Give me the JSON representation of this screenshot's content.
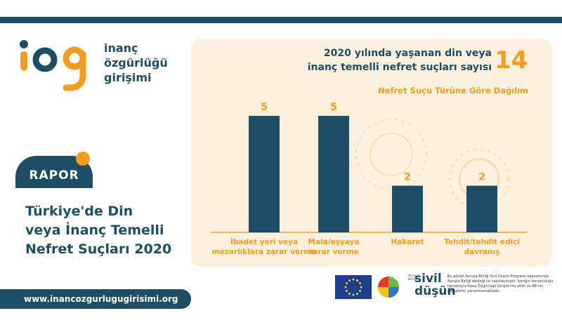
{
  "brand": {
    "line1": "inanç",
    "line2": "özgürlüğü",
    "line3": "girişimi",
    "colors": {
      "navy": "#1d4e63",
      "orange": "#f39c1e",
      "panel": "#fdf0dc"
    }
  },
  "report": {
    "badge": "RAPOR",
    "title_lines": [
      "Türkiye'de Din",
      "veya İnanç Temelli",
      "Nefret Suçları 2020"
    ]
  },
  "url": "www.inancozgurlugugirisimi.org",
  "headline": {
    "line1": "2020 yılında yaşanan din veya",
    "line2": "inanç temelli nefret suçları sayısı",
    "total": "14"
  },
  "chart_data": {
    "type": "bar",
    "title": "Nefret Suçu Türüne Göre Dağılım",
    "categories": [
      [
        "İbadet yeri veya",
        "mezarlıklara zarar verme"
      ],
      [
        "Mala/eşyaya",
        "zarar verme"
      ],
      [
        "Hakaret"
      ],
      [
        "Tehdit/tehdit edici",
        "davranış"
      ]
    ],
    "values": [
      5,
      5,
      2,
      2
    ],
    "ylim": [
      0,
      5
    ]
  },
  "footer": {
    "sivil_small": [
      "Avrupa",
      "Birliği"
    ],
    "sivil_line1": "sivil",
    "sivil_line2": "düşün",
    "disclaimer": "Bu görsel Avrupa Birliği Sivil Düşün Programı kapsamında Avrupa Birliği desteği ile hazırlanmıştır. İçeriğin sorumluluğu tamamıyla İnanç Özgürlüğü Girişimi'ne aittir ve AB'nin görüşlerini yansıtmamaktadır."
  }
}
